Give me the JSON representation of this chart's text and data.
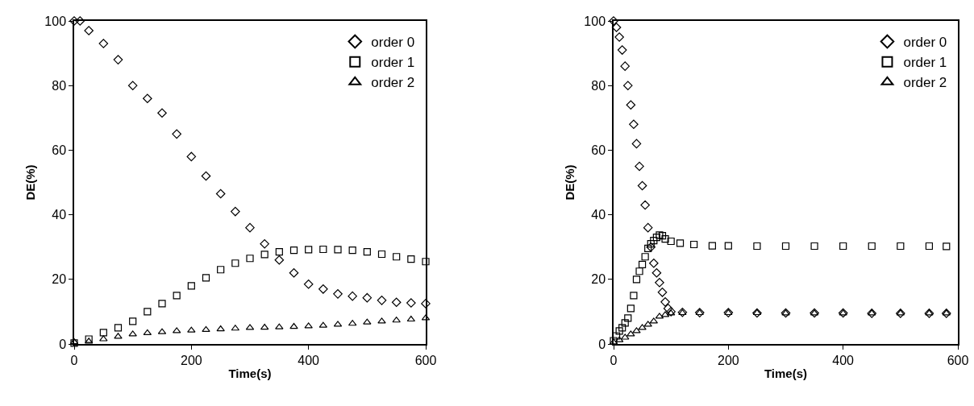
{
  "chart_data": [
    {
      "type": "scatter",
      "xlabel": "Time(s)",
      "ylabel": "DE(%)",
      "xlim": [
        0,
        600
      ],
      "ylim": [
        0,
        100
      ],
      "xticks": [
        0,
        200,
        400,
        600
      ],
      "yticks": [
        0,
        20,
        40,
        60,
        80,
        100
      ],
      "grid": false,
      "legend": "top right",
      "series": [
        {
          "name": "order 0",
          "color": "#000000",
          "marker": "diamond",
          "x": [
            0,
            10,
            25,
            50,
            75,
            100,
            125,
            150,
            175,
            200,
            225,
            250,
            275,
            300,
            325,
            350,
            375,
            400,
            425,
            450,
            475,
            500,
            525,
            550,
            575,
            600
          ],
          "values": [
            100,
            100,
            97,
            93,
            88,
            80,
            76,
            71.5,
            65,
            58,
            52,
            46.5,
            41,
            36,
            31,
            26,
            22,
            18.5,
            17,
            15.5,
            14.8,
            14.3,
            13.5,
            12.9,
            12.7,
            12.5
          ]
        },
        {
          "name": "order 1",
          "color": "#000000",
          "marker": "square",
          "x": [
            0,
            25,
            50,
            75,
            100,
            125,
            150,
            175,
            200,
            225,
            250,
            275,
            300,
            325,
            350,
            375,
            400,
            425,
            450,
            475,
            500,
            525,
            550,
            575,
            600
          ],
          "values": [
            0.3,
            1.5,
            3.5,
            5,
            7,
            10,
            12.5,
            15,
            18,
            20.5,
            23,
            25,
            26.5,
            27.7,
            28.5,
            29,
            29.2,
            29.3,
            29.2,
            29,
            28.5,
            27.8,
            27,
            26.3,
            25.5
          ]
        },
        {
          "name": "order 2",
          "color": "#000000",
          "marker": "triangle",
          "x": [
            0,
            25,
            50,
            75,
            100,
            125,
            150,
            175,
            200,
            225,
            250,
            275,
            300,
            325,
            350,
            375,
            400,
            425,
            450,
            475,
            500,
            525,
            550,
            575,
            600
          ],
          "values": [
            0.6,
            0.8,
            1.5,
            2.3,
            3,
            3.4,
            3.7,
            4,
            4.2,
            4.4,
            4.6,
            4.8,
            5,
            5.1,
            5.2,
            5.35,
            5.5,
            5.7,
            6,
            6.3,
            6.7,
            7,
            7.3,
            7.6,
            8
          ]
        }
      ]
    },
    {
      "type": "scatter",
      "xlabel": "Time(s)",
      "ylabel": "DE(%)",
      "xlim": [
        0,
        600
      ],
      "ylim": [
        0,
        100
      ],
      "xticks": [
        0,
        200,
        400,
        600
      ],
      "yticks": [
        0,
        20,
        40,
        60,
        80,
        100
      ],
      "grid": false,
      "legend": "top right",
      "series": [
        {
          "name": "order 0",
          "color": "#000000",
          "marker": "diamond",
          "x": [
            0,
            5,
            10,
            15,
            20,
            25,
            30,
            35,
            40,
            45,
            50,
            55,
            60,
            65,
            70,
            75,
            80,
            85,
            90,
            95,
            100,
            120,
            150,
            200,
            250,
            300,
            350,
            400,
            450,
            500,
            550,
            580
          ],
          "values": [
            100,
            98,
            95,
            91,
            86,
            80,
            74,
            68,
            62,
            55,
            49,
            43,
            36,
            30,
            25,
            22,
            19,
            16,
            13,
            11,
            10,
            9.8,
            9.7,
            9.7,
            9.6,
            9.6,
            9.6,
            9.6,
            9.5,
            9.5,
            9.5,
            9.5
          ]
        },
        {
          "name": "order 1",
          "color": "#000000",
          "marker": "square",
          "x": [
            0,
            5,
            10,
            15,
            20,
            25,
            30,
            35,
            40,
            45,
            50,
            55,
            60,
            65,
            70,
            75,
            80,
            85,
            90,
            100,
            116,
            140,
            172,
            200,
            250,
            300,
            350,
            400,
            450,
            500,
            550,
            580
          ],
          "values": [
            1,
            2.5,
            4,
            5,
            6.5,
            8,
            11,
            15,
            20,
            22.5,
            24.6,
            27,
            29.6,
            31,
            32,
            33,
            33.7,
            33.5,
            32.5,
            31.8,
            31.2,
            30.8,
            30.4,
            30.4,
            30.3,
            30.3,
            30.3,
            30.3,
            30.3,
            30.3,
            30.3,
            30.2
          ]
        },
        {
          "name": "order 2",
          "color": "#000000",
          "marker": "triangle",
          "x": [
            0,
            10,
            20,
            30,
            40,
            50,
            60,
            70,
            80,
            90,
            100,
            120,
            150,
            200,
            250,
            300,
            350,
            400,
            450,
            500,
            550,
            580
          ],
          "values": [
            0.5,
            1.2,
            2,
            3,
            4,
            5,
            6,
            7,
            8.5,
            9,
            9.5,
            9.6,
            9.6,
            9.6,
            9.6,
            9.5,
            9.5,
            9.5,
            9.5,
            9.5,
            9.5,
            9.5
          ]
        }
      ]
    }
  ]
}
